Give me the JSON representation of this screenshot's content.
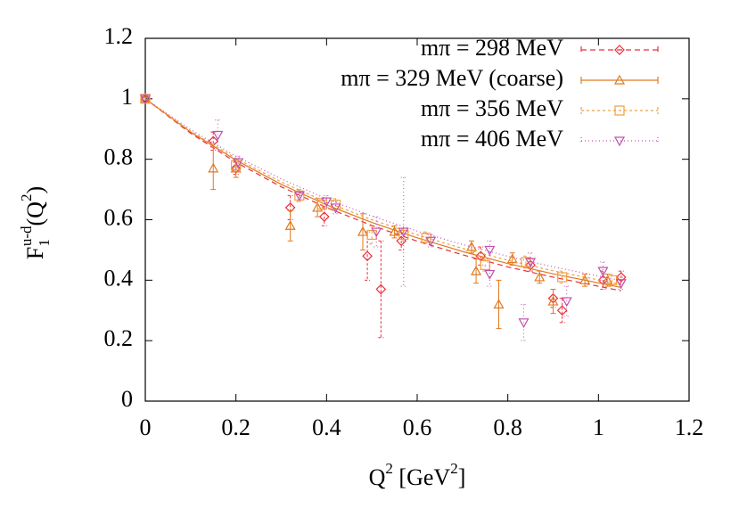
{
  "chart_data": {
    "type": "scatter",
    "xlabel_parts": [
      "Q",
      "2",
      " [GeV",
      "2",
      "]"
    ],
    "ylabel_parts": [
      "F",
      "1",
      "u-d",
      "(Q",
      "2",
      ")"
    ],
    "xlim": [
      0,
      1.2
    ],
    "ylim": [
      0,
      1.2
    ],
    "xticks": [
      0,
      0.2,
      0.4,
      0.6,
      0.8,
      1,
      1.2
    ],
    "yticks": [
      0,
      0.2,
      0.4,
      0.6,
      0.8,
      1,
      1.2
    ],
    "legend": "top-right",
    "fit_x": [
      0,
      0.1,
      0.2,
      0.3,
      0.4,
      0.5,
      0.6,
      0.7,
      0.8,
      0.9,
      1.05
    ],
    "series": [
      {
        "name": "mπ = 298 MeV",
        "color": "#e8303c",
        "marker": "diamond",
        "dash": "6,4",
        "x": [
          0,
          0.15,
          0.2,
          0.32,
          0.395,
          0.49,
          0.52,
          0.565,
          0.74,
          0.85,
          0.9,
          0.92,
          1.01,
          1.05
        ],
        "values": [
          1,
          0.86,
          0.77,
          0.64,
          0.61,
          0.48,
          0.37,
          0.53,
          0.48,
          0.45,
          0.34,
          0.3,
          0.4,
          0.41
        ],
        "errors": [
          0.005,
          0.03,
          0.02,
          0.04,
          0.03,
          0.08,
          0.16,
          0.03,
          0.03,
          0.02,
          0.03,
          0.04,
          0.03,
          0.02
        ],
        "fit": [
          1,
          0.886,
          0.79,
          0.709,
          0.64,
          0.581,
          0.529,
          0.484,
          0.444,
          0.41,
          0.365
        ]
      },
      {
        "name": "mπ = 329 MeV (coarse)",
        "color": "#e07a20",
        "marker": "triangle",
        "dash": "",
        "x": [
          0,
          0.15,
          0.2,
          0.32,
          0.38,
          0.48,
          0.55,
          0.72,
          0.73,
          0.78,
          0.81,
          0.87,
          0.9,
          0.97,
          1.02
        ],
        "values": [
          1,
          0.77,
          0.77,
          0.58,
          0.64,
          0.56,
          0.56,
          0.51,
          0.43,
          0.32,
          0.47,
          0.41,
          0.33,
          0.4,
          0.4
        ],
        "errors": [
          0.005,
          0.07,
          0.03,
          0.05,
          0.03,
          0.06,
          0.02,
          0.02,
          0.04,
          0.08,
          0.02,
          0.02,
          0.04,
          0.02,
          0.02
        ],
        "fit": [
          1,
          0.89,
          0.797,
          0.717,
          0.649,
          0.591,
          0.54,
          0.495,
          0.455,
          0.421,
          0.376
        ]
      },
      {
        "name": "mπ = 356 MeV",
        "color": "#f0a040",
        "marker": "square",
        "dash": "3,3",
        "x": [
          0,
          0.2,
          0.34,
          0.39,
          0.42,
          0.5,
          0.57,
          0.62,
          0.75,
          0.84,
          0.92,
          1.03
        ],
        "values": [
          1,
          0.78,
          0.68,
          0.65,
          0.65,
          0.55,
          0.55,
          0.54,
          0.45,
          0.46,
          0.41,
          0.4
        ],
        "errors": [
          0.005,
          0.02,
          0.02,
          0.02,
          0.02,
          0.03,
          0.02,
          0.02,
          0.02,
          0.02,
          0.02,
          0.02
        ],
        "fit": [
          1,
          0.893,
          0.803,
          0.725,
          0.658,
          0.6,
          0.55,
          0.505,
          0.466,
          0.431,
          0.386
        ]
      },
      {
        "name": "mπ = 406 MeV",
        "color": "#c050b0",
        "marker": "triangle-down",
        "dash": "1,3",
        "x": [
          0,
          0.16,
          0.205,
          0.34,
          0.4,
          0.42,
          0.51,
          0.57,
          0.63,
          0.76,
          0.76,
          0.835,
          0.85,
          0.93,
          1.01,
          1.05
        ],
        "values": [
          1,
          0.88,
          0.79,
          0.68,
          0.66,
          0.64,
          0.56,
          0.56,
          0.53,
          0.5,
          0.42,
          0.26,
          0.46,
          0.33,
          0.43,
          0.39
        ],
        "errors": [
          0.005,
          0.05,
          0.02,
          0.02,
          0.02,
          0.02,
          0.05,
          0.18,
          0.02,
          0.03,
          0.04,
          0.06,
          0.03,
          0.05,
          0.03,
          0.02
        ],
        "fit": [
          1,
          0.898,
          0.81,
          0.735,
          0.669,
          0.612,
          0.5625,
          0.518,
          0.479,
          0.444,
          0.399
        ]
      }
    ]
  }
}
